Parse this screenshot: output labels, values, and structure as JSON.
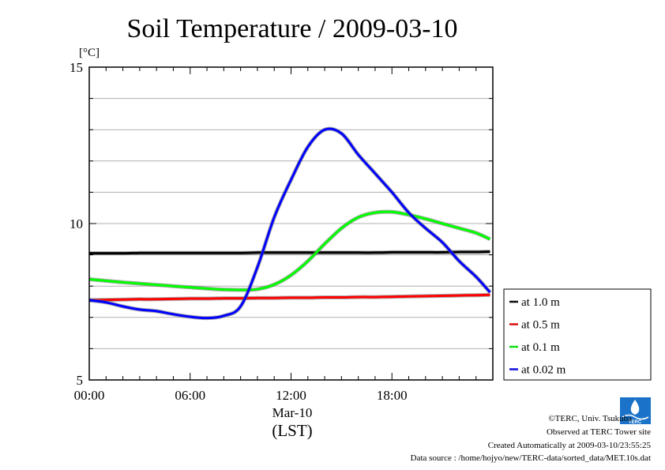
{
  "chart_data": {
    "type": "line",
    "title": "Soil Temperature / 2009-03-10",
    "ylabel": "[°C]",
    "ylim": [
      5,
      15
    ],
    "yticks": [
      "5",
      "10",
      "15"
    ],
    "xlim": [
      "00:00",
      "24:00"
    ],
    "xticks": [
      "00:00",
      "06:00",
      "12:00",
      "18:00"
    ],
    "xlabel_date": "Mar-10",
    "xlabel_unit": "(LST)",
    "grid": true,
    "legend_position": "right",
    "x": [
      "00:00",
      "01:00",
      "02:00",
      "03:00",
      "04:00",
      "05:00",
      "06:00",
      "07:00",
      "08:00",
      "09:00",
      "10:00",
      "11:00",
      "12:00",
      "13:00",
      "14:00",
      "15:00",
      "16:00",
      "17:00",
      "18:00",
      "19:00",
      "20:00",
      "21:00",
      "22:00",
      "23:00",
      "23:50"
    ],
    "series": [
      {
        "name": "at 1.0 m",
        "color": "#000000",
        "values": [
          9.05,
          9.05,
          9.05,
          9.06,
          9.06,
          9.06,
          9.06,
          9.06,
          9.06,
          9.06,
          9.07,
          9.07,
          9.07,
          9.07,
          9.07,
          9.07,
          9.07,
          9.07,
          9.08,
          9.08,
          9.08,
          9.08,
          9.09,
          9.09,
          9.1
        ]
      },
      {
        "name": "at 0.5 m",
        "color": "#ff0000",
        "values": [
          7.55,
          7.56,
          7.57,
          7.58,
          7.58,
          7.59,
          7.6,
          7.6,
          7.61,
          7.61,
          7.62,
          7.62,
          7.63,
          7.63,
          7.64,
          7.64,
          7.65,
          7.65,
          7.66,
          7.67,
          7.68,
          7.69,
          7.7,
          7.71,
          7.72
        ]
      },
      {
        "name": "at 0.1 m",
        "color": "#00ff00",
        "values": [
          8.22,
          8.17,
          8.12,
          8.08,
          8.04,
          8.0,
          7.96,
          7.92,
          7.89,
          7.88,
          7.9,
          8.05,
          8.35,
          8.8,
          9.35,
          9.85,
          10.2,
          10.35,
          10.37,
          10.28,
          10.15,
          10.0,
          9.85,
          9.7,
          9.5
        ]
      },
      {
        "name": "at 0.02 m",
        "color": "#0000ff",
        "values": [
          7.55,
          7.48,
          7.35,
          7.25,
          7.2,
          7.1,
          7.02,
          6.98,
          7.05,
          7.35,
          8.6,
          10.2,
          11.4,
          12.45,
          13.0,
          12.88,
          12.2,
          11.6,
          11.0,
          10.35,
          9.85,
          9.4,
          8.8,
          8.3,
          7.8
        ]
      }
    ]
  },
  "credits": {
    "copyright": "©TERC, Univ. Tsukuba",
    "site": "Observed at TERC Tower site",
    "created": "Created Automatically at 2009-03-10/23:55:25",
    "source": "Data source : /home/hojyo/new/TERC-data/sorted_data/MET.10s.dat",
    "logo_text": "TERC"
  }
}
